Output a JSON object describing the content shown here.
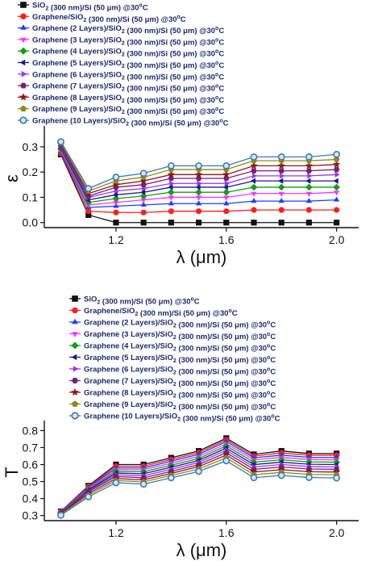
{
  "colors": {
    "series": [
      "#111111",
      "#ff1f1f",
      "#1f3dff",
      "#ff33ff",
      "#11a011",
      "#1a1a8c",
      "#9a33ff",
      "#7a1f7a",
      "#8a1a1a",
      "#8c8c1a",
      "#3a79b5"
    ],
    "axis": "#111111",
    "legend_text": "#1b2a6b"
  },
  "chart_data": [
    {
      "type": "line",
      "title": "",
      "xlabel": "λ (μm)",
      "ylabel": "ε",
      "xlim": [
        0.94,
        2.08
      ],
      "ylim": [
        -0.02,
        0.37
      ],
      "xticks": [
        "1.2",
        "1.6",
        "2.0"
      ],
      "xtick_values": [
        1.2,
        1.6,
        2.0
      ],
      "yticks": [
        "0.0",
        "0.1",
        "0.2",
        "0.3"
      ],
      "ytick_values": [
        0.0,
        0.1,
        0.2,
        0.3
      ],
      "grid": false,
      "legend_position": "top",
      "x": [
        1.0,
        1.1,
        1.2,
        1.3,
        1.4,
        1.5,
        1.6,
        1.7,
        1.8,
        1.9,
        2.0
      ],
      "series": [
        {
          "name": "SiO2 (300 nm)/Si (50 μm) @30°C",
          "marker": "square",
          "values": [
            0.27,
            0.03,
            0.0,
            0.0,
            0.0,
            0.0,
            0.0,
            0.0,
            0.0,
            0.0,
            0.0
          ]
        },
        {
          "name": "Graphene/SiO2 (300 nm)/Si (50 μm) @30°C",
          "marker": "circle",
          "values": [
            0.275,
            0.045,
            0.04,
            0.04,
            0.045,
            0.045,
            0.045,
            0.05,
            0.05,
            0.05,
            0.05
          ]
        },
        {
          "name": "Graphene (2 Layers)/SiO2 (300 nm)/Si (50 μm) @30°C",
          "marker": "triangle-up",
          "values": [
            0.28,
            0.06,
            0.065,
            0.07,
            0.075,
            0.075,
            0.075,
            0.085,
            0.085,
            0.085,
            0.09
          ]
        },
        {
          "name": "Graphene (3 Layers)/SiO2 (300 nm)/Si (50 μm) @30°C",
          "marker": "triangle-down",
          "values": [
            0.285,
            0.07,
            0.08,
            0.09,
            0.1,
            0.1,
            0.1,
            0.115,
            0.115,
            0.115,
            0.12
          ]
        },
        {
          "name": "Graphene (4 Layers)/SiO2 (300 nm)/Si (50 μm) @30°C",
          "marker": "diamond",
          "values": [
            0.29,
            0.08,
            0.095,
            0.105,
            0.12,
            0.12,
            0.12,
            0.14,
            0.14,
            0.14,
            0.14
          ]
        },
        {
          "name": "Graphene (5 Layers)/SiO2 (300 nm)/Si (50 μm) @30°C",
          "marker": "triangle-left",
          "values": [
            0.295,
            0.09,
            0.11,
            0.12,
            0.14,
            0.14,
            0.14,
            0.165,
            0.165,
            0.165,
            0.165
          ]
        },
        {
          "name": "Graphene (6 Layers)/SiO2 (300 nm)/Si (50 μm) @30°C",
          "marker": "triangle-right",
          "values": [
            0.3,
            0.1,
            0.125,
            0.135,
            0.155,
            0.155,
            0.155,
            0.185,
            0.185,
            0.185,
            0.19
          ]
        },
        {
          "name": "Graphene (7 Layers)/SiO2 (300 nm)/Si (50 μm) @30°C",
          "marker": "hexagon",
          "values": [
            0.305,
            0.105,
            0.14,
            0.15,
            0.175,
            0.175,
            0.175,
            0.205,
            0.205,
            0.205,
            0.21
          ]
        },
        {
          "name": "Graphene (8 Layers)/SiO2 (300 nm)/Si (50 μm) @30°C",
          "marker": "star",
          "values": [
            0.31,
            0.115,
            0.15,
            0.165,
            0.19,
            0.19,
            0.19,
            0.225,
            0.225,
            0.225,
            0.23
          ]
        },
        {
          "name": "Graphene (9 Layers)/SiO2 (300 nm)/Si (50 μm) @30°C",
          "marker": "pentagon",
          "values": [
            0.315,
            0.125,
            0.165,
            0.18,
            0.21,
            0.21,
            0.21,
            0.245,
            0.245,
            0.245,
            0.25
          ]
        },
        {
          "name": "Graphene (10 Layers)/SiO2 (300 nm)/Si (50 μm) @30°C",
          "marker": "circle-open",
          "values": [
            0.32,
            0.135,
            0.18,
            0.195,
            0.225,
            0.225,
            0.225,
            0.26,
            0.26,
            0.26,
            0.27
          ]
        }
      ]
    },
    {
      "type": "line",
      "title": "",
      "xlabel": "λ (μm)",
      "ylabel": "T",
      "xlim": [
        0.94,
        2.08
      ],
      "ylim": [
        0.27,
        0.84
      ],
      "xticks": [
        "1.2",
        "1.6",
        "2.0"
      ],
      "xtick_values": [
        1.2,
        1.6,
        2.0
      ],
      "yticks": [
        "0.3",
        "0.4",
        "0.5",
        "0.6",
        "0.7",
        "0.8"
      ],
      "ytick_values": [
        0.3,
        0.4,
        0.5,
        0.6,
        0.7,
        0.8
      ],
      "grid": false,
      "legend_position": "top",
      "x": [
        1.0,
        1.1,
        1.2,
        1.3,
        1.4,
        1.5,
        1.6,
        1.7,
        1.8,
        1.9,
        2.0
      ],
      "series": [
        {
          "name": "SiO2 (300 nm)/Si (50 μm) @30°C",
          "marker": "square",
          "values": [
            0.325,
            0.475,
            0.6,
            0.6,
            0.64,
            0.68,
            0.755,
            0.66,
            0.68,
            0.665,
            0.665
          ]
        },
        {
          "name": "Graphene/SiO2 (300 nm)/Si (50 μm) @30°C",
          "marker": "circle",
          "values": [
            0.324,
            0.47,
            0.59,
            0.59,
            0.63,
            0.67,
            0.745,
            0.65,
            0.668,
            0.655,
            0.655
          ]
        },
        {
          "name": "Graphene (2 Layers)/SiO2 (300 nm)/Si (50 μm) @30°C",
          "marker": "triangle-up",
          "values": [
            0.322,
            0.465,
            0.58,
            0.58,
            0.62,
            0.66,
            0.735,
            0.64,
            0.655,
            0.643,
            0.642
          ]
        },
        {
          "name": "Graphene (3 Layers)/SiO2 (300 nm)/Si (50 μm) @30°C",
          "marker": "triangle-down",
          "values": [
            0.32,
            0.46,
            0.57,
            0.57,
            0.608,
            0.648,
            0.722,
            0.628,
            0.642,
            0.63,
            0.628
          ]
        },
        {
          "name": "Graphene (4 Layers)/SiO2 (300 nm)/Si (50 μm) @30°C",
          "marker": "diamond",
          "values": [
            0.318,
            0.455,
            0.56,
            0.558,
            0.596,
            0.636,
            0.71,
            0.614,
            0.628,
            0.616,
            0.614
          ]
        },
        {
          "name": "Graphene (5 Layers)/SiO2 (300 nm)/Si (50 μm) @30°C",
          "marker": "triangle-left",
          "values": [
            0.316,
            0.45,
            0.55,
            0.546,
            0.584,
            0.624,
            0.697,
            0.6,
            0.614,
            0.602,
            0.6
          ]
        },
        {
          "name": "Graphene (6 Layers)/SiO2 (300 nm)/Si (50 μm) @30°C",
          "marker": "triangle-right",
          "values": [
            0.314,
            0.445,
            0.54,
            0.534,
            0.572,
            0.612,
            0.684,
            0.586,
            0.6,
            0.588,
            0.586
          ]
        },
        {
          "name": "Graphene (7 Layers)/SiO2 (300 nm)/Si (50 μm) @30°C",
          "marker": "hexagon",
          "values": [
            0.312,
            0.44,
            0.53,
            0.522,
            0.56,
            0.6,
            0.67,
            0.572,
            0.586,
            0.574,
            0.572
          ]
        },
        {
          "name": "Graphene (8 Layers)/SiO2 (300 nm)/Si (50 μm) @30°C",
          "marker": "star",
          "values": [
            0.31,
            0.43,
            0.518,
            0.51,
            0.548,
            0.588,
            0.656,
            0.556,
            0.57,
            0.558,
            0.556
          ]
        },
        {
          "name": "Graphene (9 Layers)/SiO2 (300 nm)/Si (50 μm) @30°C",
          "marker": "pentagon",
          "values": [
            0.306,
            0.42,
            0.506,
            0.498,
            0.536,
            0.574,
            0.64,
            0.54,
            0.554,
            0.542,
            0.54
          ]
        },
        {
          "name": "Graphene (10 Layers)/SiO2 (300 nm)/Si (50 μm) @30°C",
          "marker": "circle-open",
          "values": [
            0.302,
            0.41,
            0.493,
            0.485,
            0.522,
            0.56,
            0.622,
            0.523,
            0.536,
            0.524,
            0.521
          ]
        }
      ]
    }
  ]
}
